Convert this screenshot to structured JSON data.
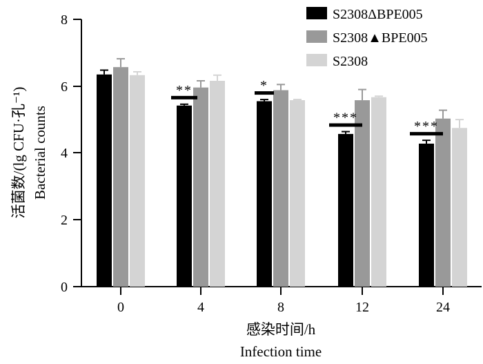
{
  "chart_data": {
    "type": "bar",
    "categories": [
      "0",
      "4",
      "8",
      "12",
      "24"
    ],
    "series": [
      {
        "name": "S2308ΔBPE005",
        "color": "#000000",
        "values": [
          6.35,
          5.42,
          5.55,
          4.57,
          4.28
        ],
        "errors": [
          0.13,
          0.04,
          0.05,
          0.07,
          0.1
        ]
      },
      {
        "name": "S2308▲BPE005",
        "color": "#999999",
        "values": [
          6.57,
          5.96,
          5.88,
          5.58,
          5.03
        ],
        "errors": [
          0.25,
          0.2,
          0.17,
          0.32,
          0.25
        ]
      },
      {
        "name": "S2308",
        "color": "#d4d4d4",
        "values": [
          6.33,
          6.16,
          5.58,
          5.67,
          4.75
        ],
        "errors": [
          0.1,
          0.17,
          0.02,
          0.03,
          0.25
        ]
      }
    ],
    "significance": [
      "",
      "**",
      "*",
      "***",
      "***"
    ],
    "ylabel_cn": "活菌数/(lg CFU·孔⁻¹)",
    "ylabel_en": "Bacterial counts",
    "xlabel_cn": "感染时间/h",
    "xlabel_en": "Infection time",
    "yticks": [
      "0",
      "2",
      "4",
      "6",
      "8"
    ],
    "ylim": [
      0,
      8
    ],
    "legend_position": "top-right",
    "grid": false
  }
}
